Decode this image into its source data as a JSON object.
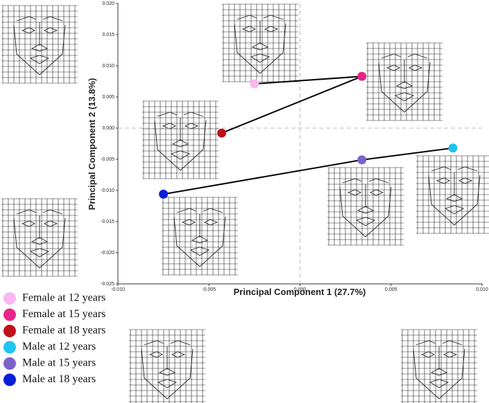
{
  "chart_data": {
    "type": "scatter",
    "xlabel": "Principal Component 1 (27.7%)",
    "ylabel": "Principal Component 2 (13.8%)",
    "xlim": [
      -0.01,
      0.01
    ],
    "ylim": [
      -0.025,
      0.02
    ],
    "xticks": [
      {
        "value": -0.01,
        "label": "-0.010"
      },
      {
        "value": -0.005,
        "label": "-0.005"
      },
      {
        "value": 0,
        "label": "0.000"
      },
      {
        "value": 0.005,
        "label": "0.005"
      },
      {
        "value": 0.01,
        "label": "0.010"
      }
    ],
    "yticks": [
      {
        "value": -0.025,
        "label": "-0.025"
      },
      {
        "value": -0.02,
        "label": "-0.020"
      },
      {
        "value": -0.015,
        "label": "-0.015"
      },
      {
        "value": -0.01,
        "label": "-0.010"
      },
      {
        "value": -0.005,
        "label": "-0.005"
      },
      {
        "value": 0,
        "label": "0.000"
      },
      {
        "value": 0.005,
        "label": "0.005"
      },
      {
        "value": 0.01,
        "label": "0.010"
      },
      {
        "value": 0.015,
        "label": "0.015"
      },
      {
        "value": 0.02,
        "label": "0.020"
      }
    ],
    "legend": "lower left",
    "series": [
      {
        "name": "Female at 12 years",
        "color": "#f9b8f0",
        "x": [
          -0.0025
        ],
        "values": [
          0.0071
        ]
      },
      {
        "name": "Female at 15 years",
        "color": "#e8238a",
        "x": [
          0.0034
        ],
        "values": [
          0.0083
        ]
      },
      {
        "name": "Female at 18 years",
        "color": "#c0101a",
        "x": [
          -0.0043
        ],
        "values": [
          -0.0008
        ]
      },
      {
        "name": "Male at 12 years",
        "color": "#21c4ee",
        "x": [
          0.0084
        ],
        "values": [
          -0.0032
        ]
      },
      {
        "name": "Male at 15 years",
        "color": "#7b62c8",
        "x": [
          0.0034
        ],
        "values": [
          -0.0051
        ]
      },
      {
        "name": "Male at 18 years",
        "color": "#0a1fd6",
        "x": [
          -0.0075
        ],
        "values": [
          -0.0106
        ]
      }
    ]
  }
}
